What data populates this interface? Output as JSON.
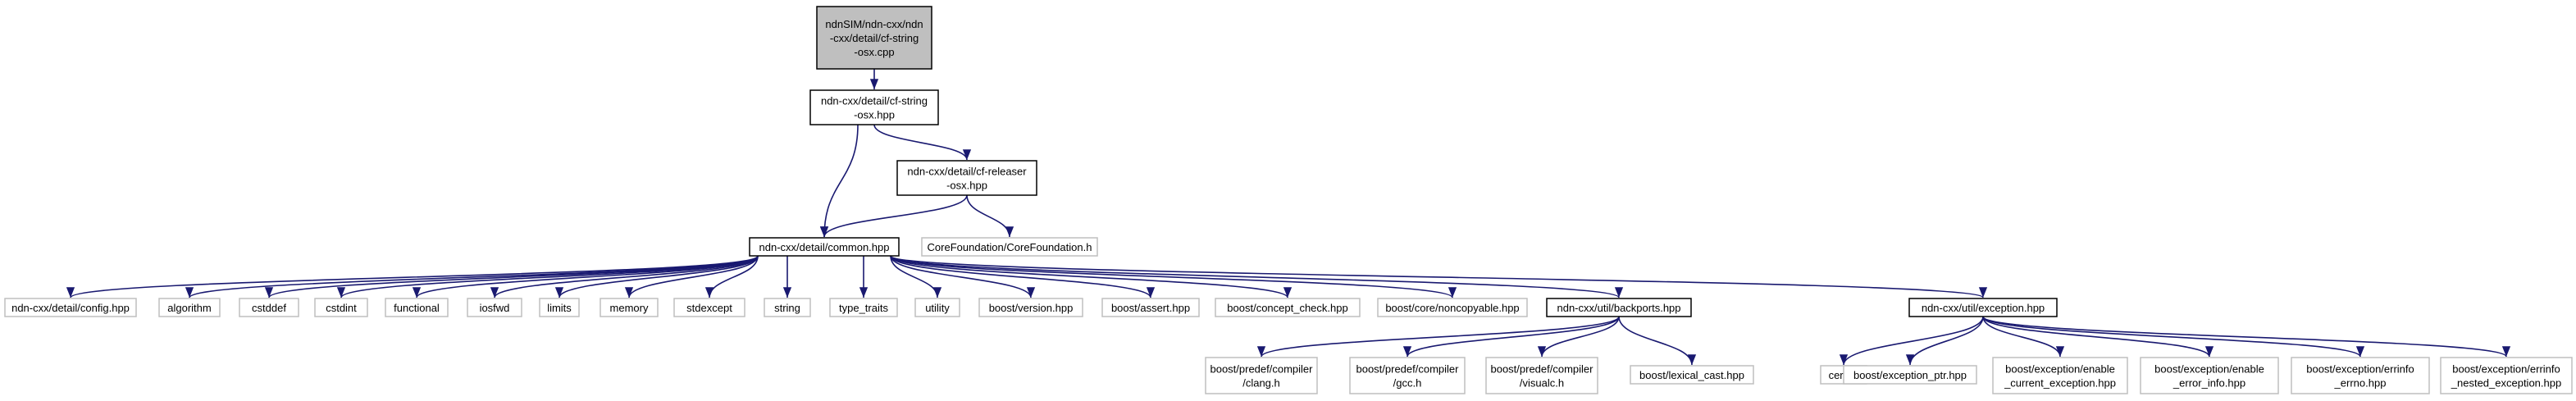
{
  "nodes": [
    {
      "lines": [
        "ndnSIM/ndn-cxx/ndn",
        "-cxx/detail/cf-string",
        "-osx.cpp"
      ]
    },
    {
      "lines": [
        "ndn-cxx/detail/cf-string",
        "-osx.hpp"
      ]
    },
    {
      "lines": [
        "ndn-cxx/detail/cf-releaser",
        "-osx.hpp"
      ]
    },
    {
      "lines": [
        "ndn-cxx/detail/common.hpp"
      ]
    },
    {
      "lines": [
        "CoreFoundation/CoreFoundation.h"
      ]
    },
    {
      "lines": [
        "ndn-cxx/detail/config.hpp"
      ]
    },
    {
      "lines": [
        "algorithm"
      ]
    },
    {
      "lines": [
        "cstddef"
      ]
    },
    {
      "lines": [
        "cstdint"
      ]
    },
    {
      "lines": [
        "functional"
      ]
    },
    {
      "lines": [
        "iosfwd"
      ]
    },
    {
      "lines": [
        "limits"
      ]
    },
    {
      "lines": [
        "memory"
      ]
    },
    {
      "lines": [
        "stdexcept"
      ]
    },
    {
      "lines": [
        "string"
      ]
    },
    {
      "lines": [
        "type_traits"
      ]
    },
    {
      "lines": [
        "utility"
      ]
    },
    {
      "lines": [
        "boost/version.hpp"
      ]
    },
    {
      "lines": [
        "boost/assert.hpp"
      ]
    },
    {
      "lines": [
        "boost/concept_check.hpp"
      ]
    },
    {
      "lines": [
        "boost/core/noncopyable.hpp"
      ]
    },
    {
      "lines": [
        "ndn-cxx/util/backports.hpp"
      ]
    },
    {
      "lines": [
        "ndn-cxx/util/exception.hpp"
      ]
    },
    {
      "lines": [
        "boost/predef/compiler",
        "/clang.h"
      ]
    },
    {
      "lines": [
        "boost/predef/compiler",
        "/gcc.h"
      ]
    },
    {
      "lines": [
        "boost/predef/compiler",
        "/visualc.h"
      ]
    },
    {
      "lines": [
        "boost/lexical_cast.hpp"
      ]
    },
    {
      "lines": [
        "cerrno"
      ]
    },
    {
      "lines": [
        "boost/exception_ptr.hpp"
      ]
    },
    {
      "lines": [
        "boost/exception/enable",
        "_current_exception.hpp"
      ]
    },
    {
      "lines": [
        "boost/exception/enable",
        "_error_info.hpp"
      ]
    },
    {
      "lines": [
        "boost/exception/errinfo",
        "_errno.hpp"
      ]
    },
    {
      "lines": [
        "boost/exception/errinfo",
        "_nested_exception.hpp"
      ]
    }
  ]
}
